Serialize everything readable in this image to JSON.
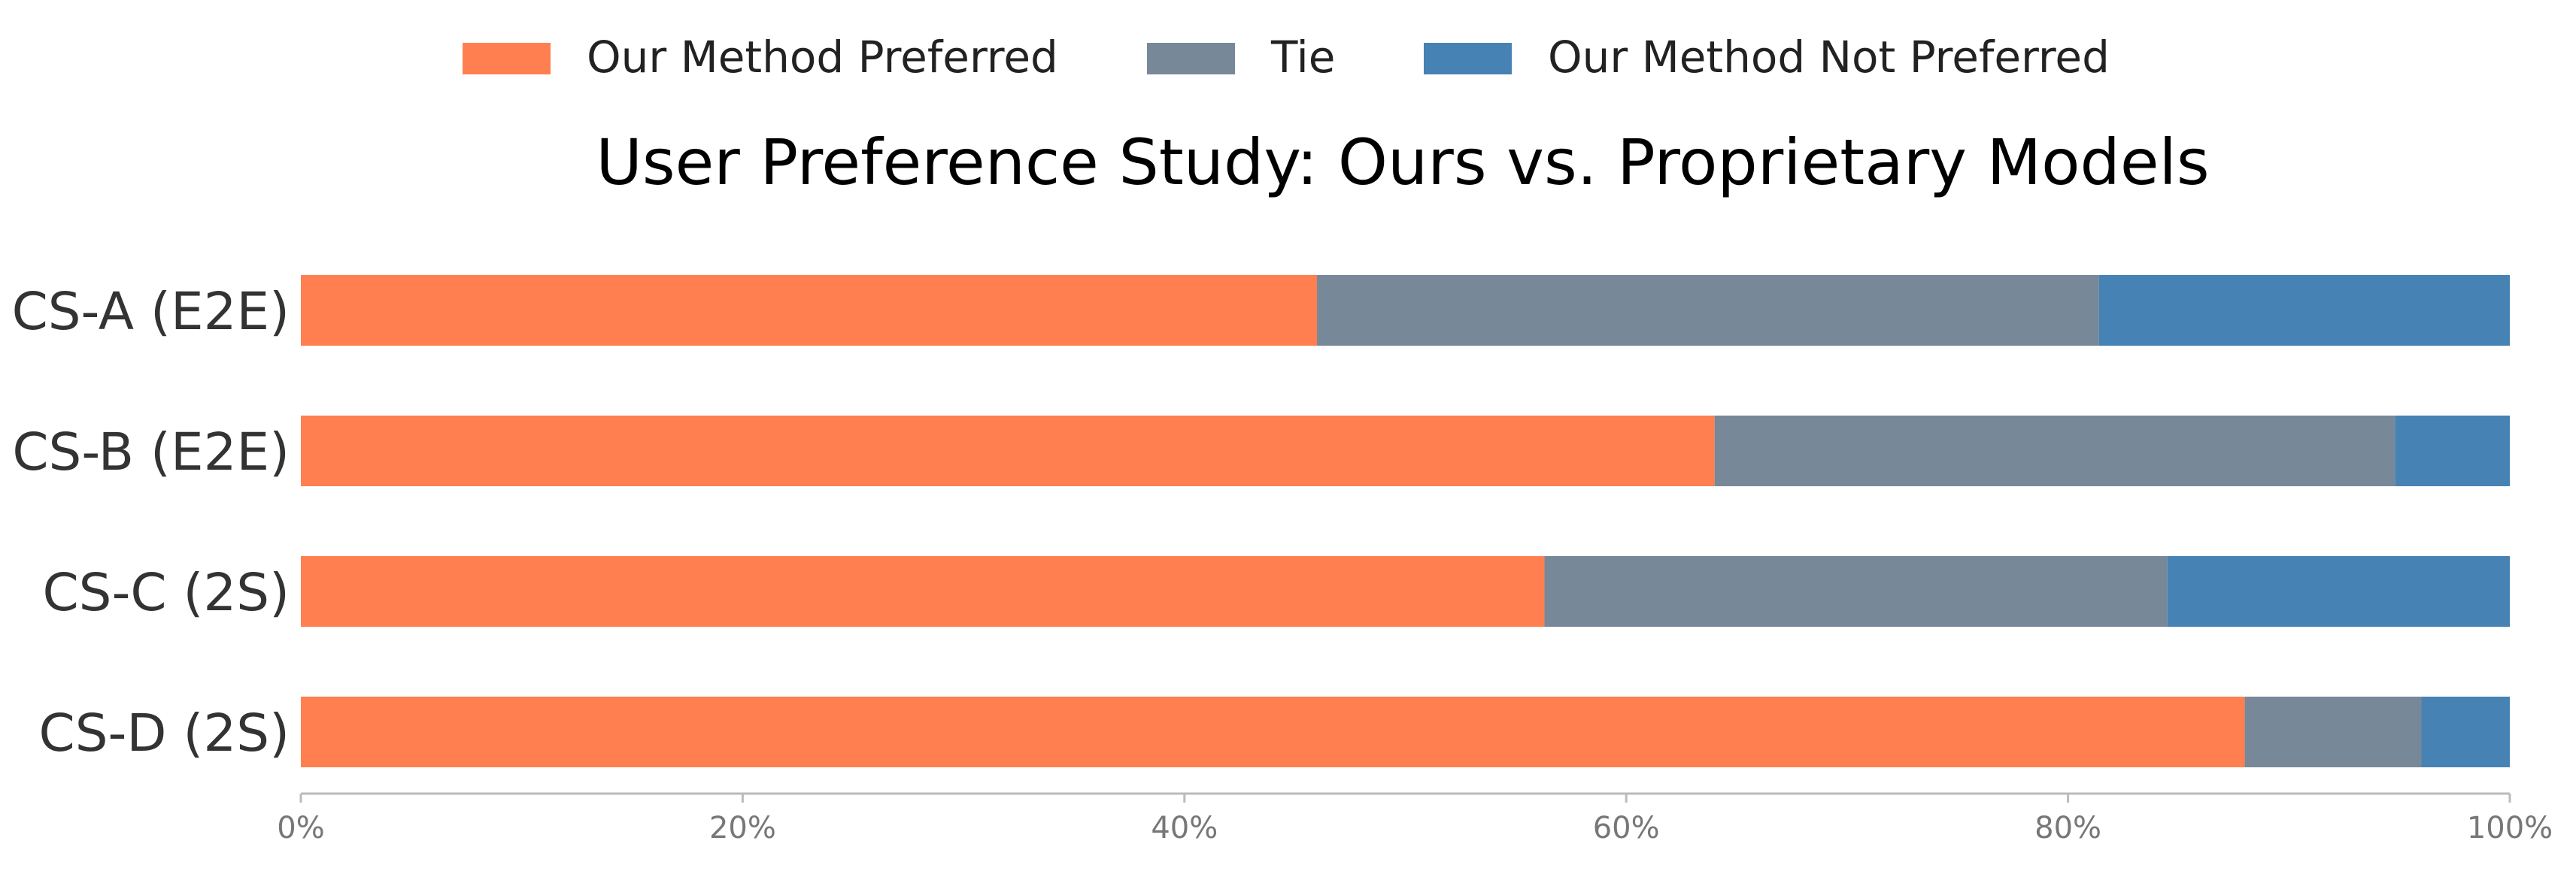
{
  "chart_data": {
    "type": "bar",
    "orientation": "horizontal",
    "stacked": true,
    "title": "User Preference Study: Ours vs. Proprietary Models",
    "categories": [
      "CS-A (E2E)",
      "CS-B (E2E)",
      "CS-C (2S)",
      "CS-D (2S)"
    ],
    "series": [
      {
        "name": "Our Method Preferred",
        "color": "#ff7f50",
        "values": [
          46,
          64,
          56.3,
          88
        ]
      },
      {
        "name": "Tie",
        "color": "#778899",
        "values": [
          35.4,
          30.8,
          28.2,
          8
        ]
      },
      {
        "name": "Our Method Not Preferred",
        "color": "#4682b4",
        "values": [
          18.6,
          5.2,
          15.5,
          4
        ]
      }
    ],
    "xlim": [
      0,
      100
    ],
    "xticks": [
      "0%",
      "20%",
      "40%",
      "60%",
      "80%",
      "100%"
    ],
    "xlabel": "",
    "ylabel": "",
    "grid": false,
    "legend": "top-center"
  }
}
